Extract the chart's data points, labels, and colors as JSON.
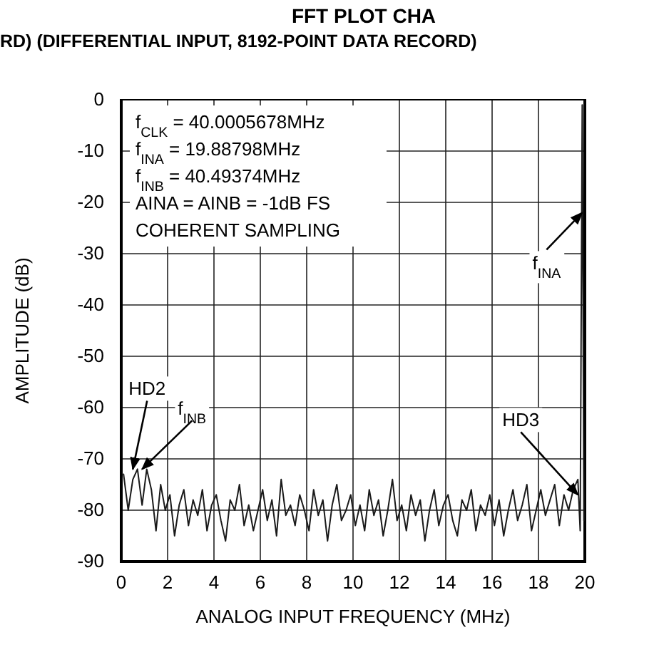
{
  "chart_data": {
    "type": "line",
    "title": "FFT PLOT CHA",
    "subtitle": "RD) (DIFFERENTIAL INPUT, 8192-POINT DATA RECORD)",
    "xlabel": "ANALOG INPUT FREQUENCY (MHz)",
    "ylabel": "AMPLITUDE (dB)",
    "xlim": [
      0,
      20
    ],
    "xticks": [
      0,
      2,
      4,
      6,
      8,
      10,
      12,
      14,
      16,
      18,
      20
    ],
    "ylim": [
      -90,
      0
    ],
    "yticks": [
      0,
      -10,
      -20,
      -30,
      -40,
      -50,
      -60,
      -70,
      -80,
      -90
    ],
    "grid": true,
    "marker": "none",
    "line_style": "solid",
    "series": [
      {
        "color": "#1a1a1a",
        "x": [
          0.1,
          0.3,
          0.5,
          0.7,
          0.9,
          1.1,
          1.3,
          1.5,
          1.7,
          1.9,
          2.1,
          2.3,
          2.5,
          2.7,
          2.9,
          3.1,
          3.3,
          3.5,
          3.7,
          3.9,
          4.1,
          4.3,
          4.5,
          4.7,
          4.9,
          5.1,
          5.3,
          5.5,
          5.7,
          5.9,
          6.1,
          6.3,
          6.5,
          6.7,
          6.9,
          7.1,
          7.3,
          7.5,
          7.7,
          7.9,
          8.1,
          8.3,
          8.5,
          8.7,
          8.9,
          9.1,
          9.3,
          9.5,
          9.7,
          9.9,
          10.1,
          10.3,
          10.5,
          10.7,
          10.9,
          11.1,
          11.3,
          11.5,
          11.7,
          11.9,
          12.1,
          12.3,
          12.5,
          12.7,
          12.9,
          13.1,
          13.3,
          13.5,
          13.7,
          13.9,
          14.1,
          14.3,
          14.5,
          14.7,
          14.9,
          15.1,
          15.3,
          15.5,
          15.7,
          15.9,
          16.1,
          16.3,
          16.5,
          16.7,
          16.9,
          17.1,
          17.3,
          17.5,
          17.7,
          17.9,
          18.1,
          18.3,
          18.5,
          18.7,
          18.9,
          19.1,
          19.3,
          19.5,
          19.7,
          19.8,
          19.888,
          19.96
        ],
        "values": [
          -73,
          -80,
          -74,
          -72,
          -79,
          -72,
          -76,
          -84,
          -75,
          -80,
          -77,
          -85,
          -79,
          -76,
          -83,
          -78,
          -81,
          -76,
          -84,
          -79,
          -77,
          -82,
          -86,
          -78,
          -80,
          -75,
          -83,
          -79,
          -84,
          -80,
          -76,
          -82,
          -78,
          -85,
          -74,
          -81,
          -79,
          -83,
          -77,
          -80,
          -84,
          -76,
          -81,
          -78,
          -86,
          -79,
          -75,
          -82,
          -80,
          -77,
          -83,
          -79,
          -84,
          -76,
          -81,
          -78,
          -85,
          -80,
          -74,
          -82,
          -79,
          -84,
          -77,
          -81,
          -78,
          -86,
          -80,
          -76,
          -83,
          -79,
          -77,
          -82,
          -85,
          -78,
          -80,
          -76,
          -84,
          -79,
          -81,
          -77,
          -83,
          -78,
          -85,
          -80,
          -76,
          -82,
          -79,
          -75,
          -84,
          -80,
          -76,
          -81,
          -78,
          -75,
          -83,
          -77,
          -80,
          -76,
          -74,
          -84,
          -1,
          -82
        ]
      }
    ],
    "annotations": [
      "f$_{CLK}$ = 40.0005678MHz",
      "f$_{INA}$ = 19.88798MHz",
      "f$_{INB}$ = 40.49374MHz",
      "AINA = AINB = -1dB FS",
      "COHERENT SAMPLING",
      {
        "text": "HD2",
        "x": 0.5,
        "y": -72
      },
      {
        "text": "f$_{INB}$",
        "x": 0.9,
        "y": -72
      },
      {
        "text": "HD3",
        "x": 19.7,
        "y": -77
      },
      {
        "text": "f$_{INA}$",
        "x": 19.888,
        "y": -22
      }
    ]
  }
}
